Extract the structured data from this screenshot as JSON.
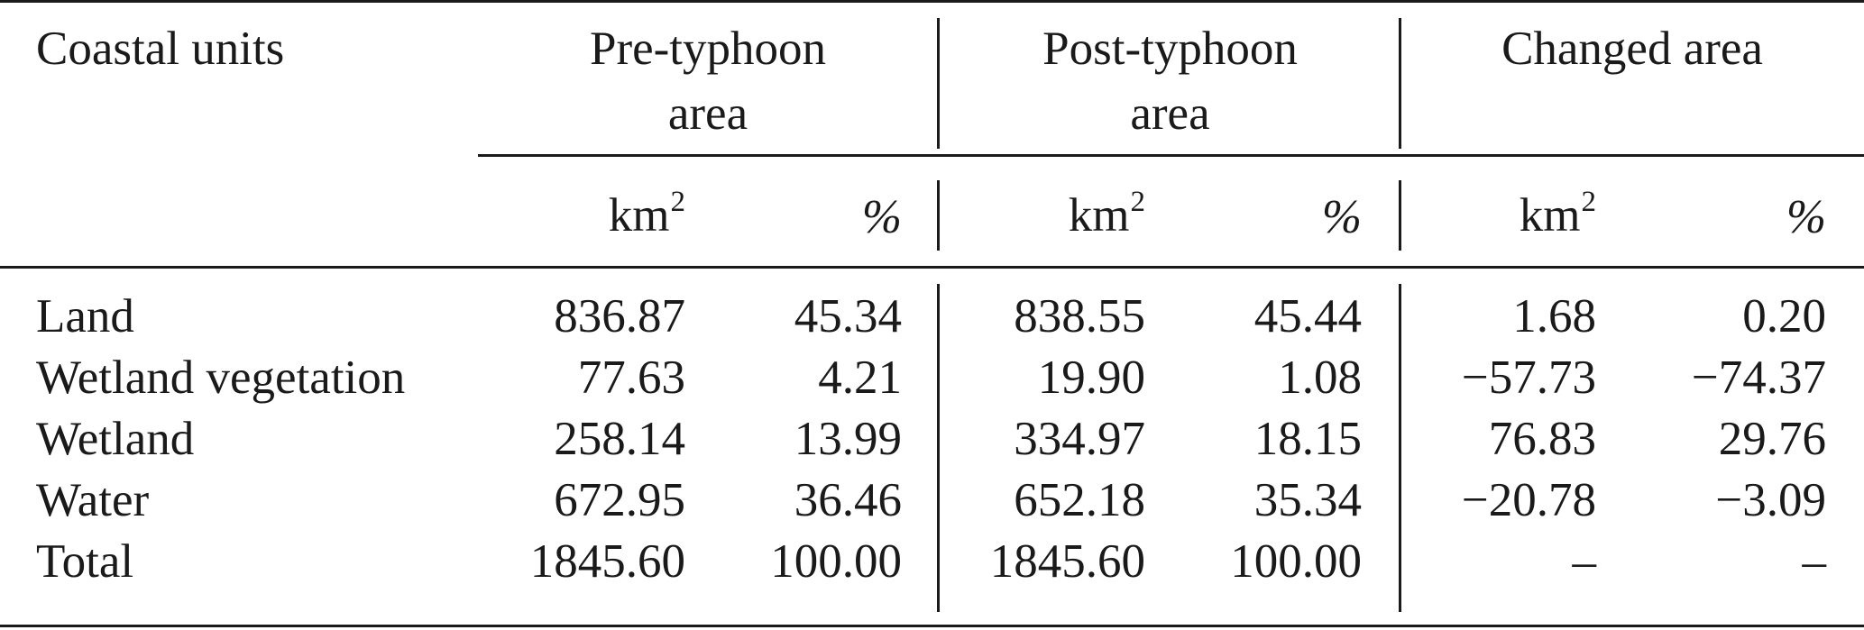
{
  "table": {
    "header": {
      "unit_col": "Coastal units",
      "groups": [
        {
          "line1": "Pre-typhoon",
          "line2": "area"
        },
        {
          "line1": "Post-typhoon",
          "line2": "area"
        },
        {
          "line1": "Changed area",
          "line2": ""
        }
      ],
      "unit_km": "km",
      "unit_sup": "2",
      "unit_pct": "%"
    },
    "rows": [
      {
        "name": "Land",
        "values": [
          "836.87",
          "45.34",
          "838.55",
          "45.44",
          "1.68",
          "0.20"
        ]
      },
      {
        "name": "Wetland vegetation",
        "values": [
          "77.63",
          "4.21",
          "19.90",
          "1.08",
          "−57.73",
          "−74.37"
        ]
      },
      {
        "name": "Wetland",
        "values": [
          "258.14",
          "13.99",
          "334.97",
          "18.15",
          "76.83",
          "29.76"
        ]
      },
      {
        "name": "Water",
        "values": [
          "672.95",
          "36.46",
          "652.18",
          "35.34",
          "−20.78",
          "−3.09"
        ]
      },
      {
        "name": "Total",
        "values": [
          "1845.60",
          "100.00",
          "1845.60",
          "100.00",
          "–",
          "–"
        ]
      }
    ]
  }
}
